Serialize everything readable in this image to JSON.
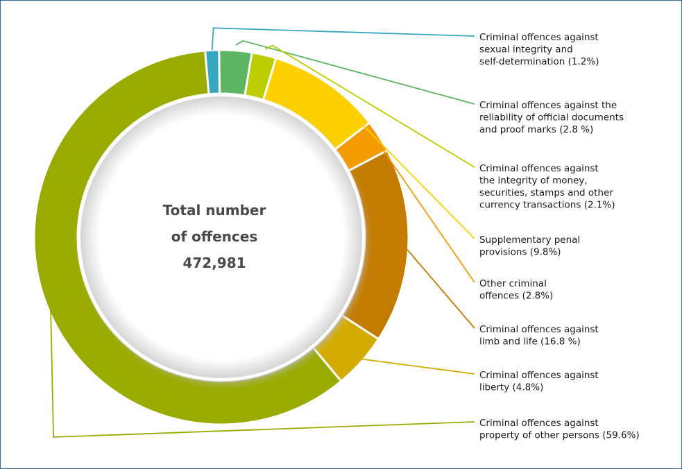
{
  "chart_data": {
    "type": "pie",
    "subtype": "donut",
    "center_label": [
      "Total number",
      "of offences",
      "472,981"
    ],
    "total": 472981,
    "legend_placement": "right",
    "slices": [
      {
        "label": [
          "Criminal offences against",
          "sexual integrity and",
          "self-determination (1.2%)"
        ],
        "value": 1.2,
        "color": "#35a7bf"
      },
      {
        "label": [
          "Criminal offences against the",
          "reliability of official documents",
          "and proof marks (2.8 %)"
        ],
        "value": 2.8,
        "color": "#5cb562"
      },
      {
        "label": [
          "Criminal offences against",
          "the integrity of money,",
          "securities, stamps and other",
          "currency transactions (2.1%)"
        ],
        "value": 2.1,
        "color": "#bccd00"
      },
      {
        "label": [
          "Supplementary penal",
          "provisions (9.8%)"
        ],
        "value": 9.8,
        "color": "#fdd000"
      },
      {
        "label": [
          "Other criminal",
          "offences (2.8%)"
        ],
        "value": 2.8,
        "color": "#f39b00"
      },
      {
        "label": [
          "Criminal offences against",
          "limb and life (16.8 %)"
        ],
        "value": 16.8,
        "color": "#c47c00"
      },
      {
        "label": [
          "Criminal offences against",
          "liberty (4.8%)"
        ],
        "value": 4.8,
        "color": "#d4ab00"
      },
      {
        "label": [
          "Criminal offences against",
          "property of other persons (59.6%)"
        ],
        "value": 59.6,
        "color": "#9aab00"
      }
    ]
  }
}
